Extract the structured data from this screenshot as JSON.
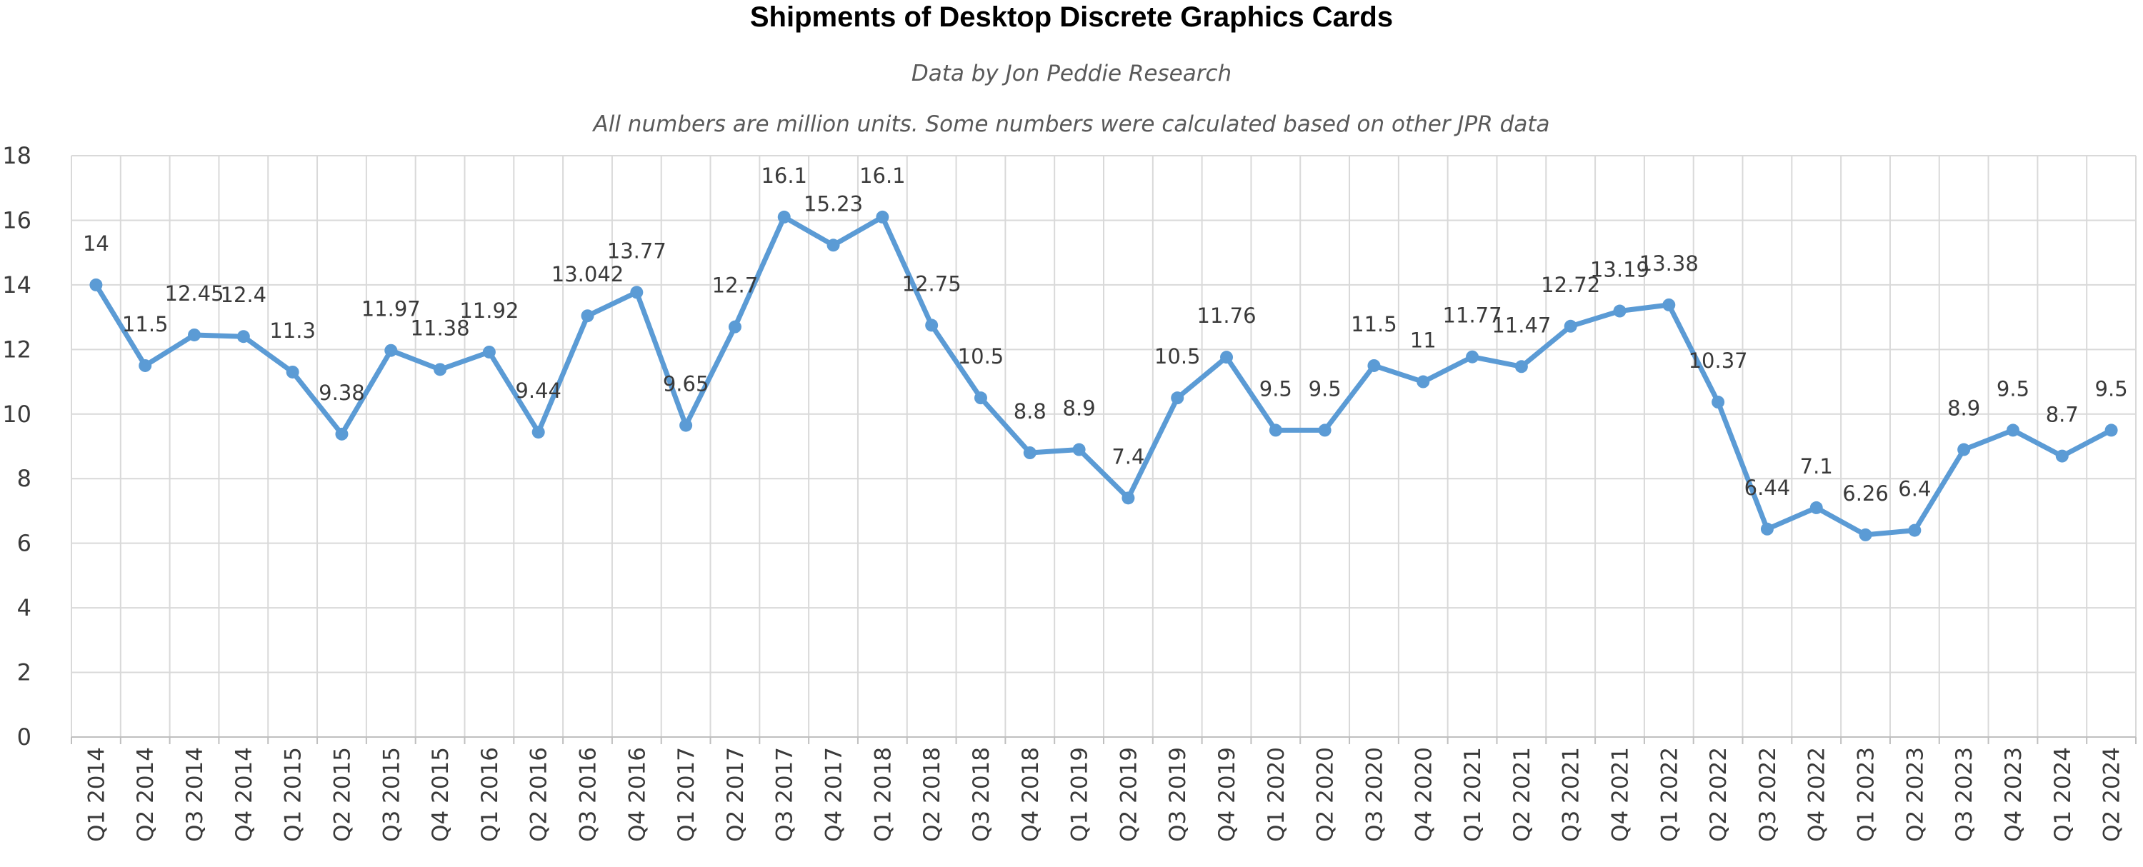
{
  "chart_data": {
    "type": "line",
    "title": "Shipments of Desktop Discrete Graphics Cards",
    "subtitle": "Data by Jon Peddie Research",
    "note": "All numbers are million units. Some numbers were calculated based on other JPR data",
    "xlabel": "",
    "ylabel": "",
    "ylim": [
      0,
      18
    ],
    "yticks": [
      "0",
      "2",
      "4",
      "6",
      "8",
      "10",
      "12",
      "14",
      "16",
      "18"
    ],
    "grid": true,
    "legend": "none",
    "categories": [
      "Q1 2014",
      "Q2 2014",
      "Q3 2014",
      "Q4 2014",
      "Q1 2015",
      "Q2 2015",
      "Q3 2015",
      "Q4 2015",
      "Q1 2016",
      "Q2 2016",
      "Q3 2016",
      "Q4 2016",
      "Q1 2017",
      "Q2 2017",
      "Q3 2017",
      "Q4 2017",
      "Q1 2018",
      "Q2 2018",
      "Q3 2018",
      "Q4 2018",
      "Q1 2019",
      "Q2 2019",
      "Q3 2019",
      "Q4 2019",
      "Q1 2020",
      "Q2 2020",
      "Q3 2020",
      "Q4 2020",
      "Q1 2021",
      "Q2 2021",
      "Q3 2021",
      "Q4 2021",
      "Q1 2022",
      "Q2 2022",
      "Q3 2022",
      "Q4 2022",
      "Q1 2023",
      "Q2 2023",
      "Q3 2023",
      "Q4 2023",
      "Q1 2024",
      "Q2 2024"
    ],
    "series": [
      {
        "name": "Desktop discrete graphics card shipments",
        "color": "#5b9bd5",
        "values": [
          14,
          11.5,
          12.45,
          12.4,
          11.3,
          9.38,
          11.97,
          11.38,
          11.92,
          9.44,
          13.042,
          13.77,
          9.65,
          12.7,
          16.1,
          15.23,
          16.1,
          12.75,
          10.5,
          8.8,
          8.9,
          7.4,
          10.5,
          11.76,
          9.5,
          9.5,
          11.5,
          11,
          11.77,
          11.47,
          12.72,
          13.19,
          13.38,
          10.37,
          6.44,
          7.1,
          6.26,
          6.4,
          8.9,
          9.5,
          8.7,
          9.5
        ],
        "labels": [
          "14",
          "11.5",
          "12.45",
          "12.4",
          "11.3",
          "9.38",
          "11.97",
          "11.38",
          "11.92",
          "9.44",
          "13.042",
          "13.77",
          "9.65",
          "12.7",
          "16.1",
          "15.23",
          "16.1",
          "12.75",
          "10.5",
          "8.8",
          "8.9",
          "7.4",
          "10.5",
          "11.76",
          "9.5",
          "9.5",
          "11.5",
          "11",
          "11.77",
          "11.47",
          "12.72",
          "13.19",
          "13.38",
          "10.37",
          "6.44",
          "7.1",
          "6.26",
          "6.4",
          "8.9",
          "9.5",
          "8.7",
          "9.5"
        ]
      }
    ]
  }
}
